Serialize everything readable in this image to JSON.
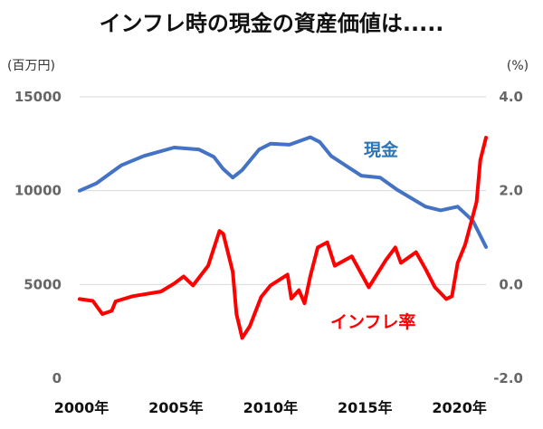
{
  "chart_data": {
    "type": "line",
    "title": "インフレ時の現金の資産価値は.....",
    "ylabel_left": "(百万円)",
    "ylabel_right": "(%)",
    "xlabel": "",
    "xlim": [
      2000,
      2021.5
    ],
    "ylim_left": [
      0,
      15000
    ],
    "ylim_right": [
      -2.0,
      4.0
    ],
    "grid": true,
    "x_ticks": [
      {
        "value": 2000,
        "label": "2000年"
      },
      {
        "value": 2005,
        "label": "2005年"
      },
      {
        "value": 2010,
        "label": "2010年"
      },
      {
        "value": 2015,
        "label": "2015年"
      },
      {
        "value": 2020,
        "label": "2020年"
      }
    ],
    "y_ticks_left": [
      {
        "value": 0,
        "label": "0"
      },
      {
        "value": 5000,
        "label": "5000"
      },
      {
        "value": 10000,
        "label": "10000"
      },
      {
        "value": 15000,
        "label": "15000"
      }
    ],
    "y_ticks_right": [
      {
        "value": -2.0,
        "label": "-2.0"
      },
      {
        "value": 0.0,
        "label": "0.0"
      },
      {
        "value": 2.0,
        "label": "2.0"
      },
      {
        "value": 4.0,
        "label": "4.0"
      }
    ],
    "series": [
      {
        "name": "現金",
        "axis": "left",
        "color": "#4472C4",
        "label_color": "#2E75B6",
        "x": [
          2000.0,
          2000.9,
          2002.2,
          2003.4,
          2005.0,
          2006.3,
          2007.1,
          2007.6,
          2008.1,
          2008.6,
          2009.5,
          2010.1,
          2011.1,
          2012.2,
          2012.7,
          2013.3,
          2014.9,
          2015.9,
          2016.8,
          2018.3,
          2019.1,
          2020.0,
          2020.8,
          2021.5
        ],
        "y": [
          10000,
          10400,
          11350,
          11850,
          12300,
          12200,
          11800,
          11150,
          10700,
          11100,
          12200,
          12500,
          12450,
          12850,
          12600,
          11850,
          10800,
          10700,
          10050,
          9150,
          8950,
          9150,
          8400,
          7000
        ]
      },
      {
        "name": "インフレ率",
        "axis": "right",
        "color": "#FF0000",
        "label_color": "#FF0000",
        "x": [
          2000.0,
          2000.7,
          2001.2,
          2001.7,
          2001.9,
          2002.8,
          2004.3,
          2005.0,
          2005.5,
          2006.0,
          2006.8,
          2007.4,
          2007.6,
          2008.1,
          2008.3,
          2008.6,
          2009.0,
          2009.6,
          2010.1,
          2011.0,
          2011.2,
          2011.6,
          2011.9,
          2012.2,
          2012.6,
          2013.1,
          2013.5,
          2014.4,
          2015.3,
          2016.2,
          2016.7,
          2017.0,
          2017.8,
          2018.3,
          2018.8,
          2019.4,
          2019.7,
          2020.0,
          2020.4,
          2021.0,
          2021.2,
          2021.5
        ],
        "y": [
          -0.31,
          -0.35,
          -0.63,
          -0.56,
          -0.36,
          -0.25,
          -0.15,
          0.02,
          0.17,
          -0.02,
          0.4,
          1.14,
          1.08,
          0.27,
          -0.63,
          -1.14,
          -0.89,
          -0.27,
          -0.02,
          0.21,
          -0.3,
          -0.12,
          -0.4,
          0.17,
          0.79,
          0.9,
          0.4,
          0.6,
          -0.06,
          0.52,
          0.79,
          0.46,
          0.69,
          0.33,
          -0.06,
          -0.31,
          -0.25,
          0.46,
          0.85,
          1.76,
          2.65,
          3.13
        ]
      }
    ]
  }
}
